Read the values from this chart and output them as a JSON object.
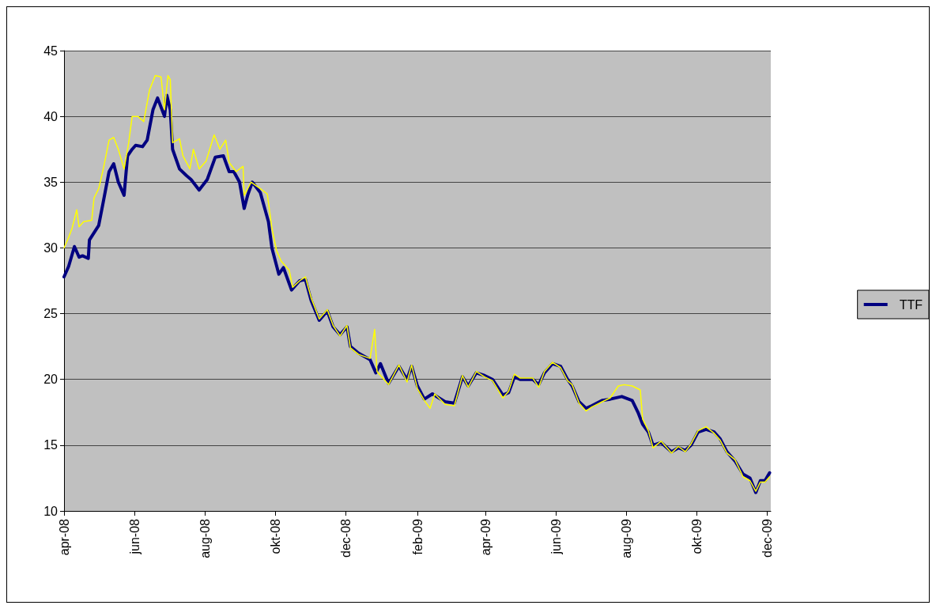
{
  "chart_data": {
    "type": "line",
    "xlim": [
      "2008-04-01",
      "2009-12-04"
    ],
    "ylim": [
      10,
      45
    ],
    "yticks": [
      10,
      15,
      20,
      25,
      30,
      35,
      40,
      45
    ],
    "xticks": [
      {
        "value": "2008-04-01",
        "label": "apr-08"
      },
      {
        "value": "2008-06-01",
        "label": "jun-08"
      },
      {
        "value": "2008-08-01",
        "label": "aug-08"
      },
      {
        "value": "2008-10-01",
        "label": "okt-08"
      },
      {
        "value": "2008-12-01",
        "label": "dec-08"
      },
      {
        "value": "2009-02-01",
        "label": "feb-09"
      },
      {
        "value": "2009-04-01",
        "label": "apr-09"
      },
      {
        "value": "2009-06-01",
        "label": "jun-09"
      },
      {
        "value": "2009-08-01",
        "label": "aug-09"
      },
      {
        "value": "2009-10-01",
        "label": "okt-09"
      },
      {
        "value": "2009-12-01",
        "label": "dec-09"
      }
    ],
    "grid": "y",
    "legend": "right",
    "marker": "none",
    "line_style": "solid",
    "series": [
      {
        "name": "TTF",
        "color": "#000080",
        "x": [
          "2008-04-01",
          "2008-04-05",
          "2008-04-10",
          "2008-04-14",
          "2008-04-17",
          "2008-04-22",
          "2008-04-23",
          "2008-05-01",
          "2008-05-05",
          "2008-05-10",
          "2008-05-14",
          "2008-05-18",
          "2008-05-23",
          "2008-05-26",
          "2008-05-30",
          "2008-06-02",
          "2008-06-08",
          "2008-06-12",
          "2008-06-17",
          "2008-06-21",
          "2008-06-27",
          "2008-06-29",
          "2008-07-02",
          "2008-07-04",
          "2008-07-10",
          "2008-07-16",
          "2008-07-20",
          "2008-07-27",
          "2008-08-03",
          "2008-08-10",
          "2008-08-17",
          "2008-08-22",
          "2008-08-26",
          "2008-08-31",
          "2008-09-04",
          "2008-09-07",
          "2008-09-11",
          "2008-09-18",
          "2008-09-25",
          "2008-09-28",
          "2008-10-04",
          "2008-10-08",
          "2008-10-15",
          "2008-10-22",
          "2008-10-27",
          "2008-11-01",
          "2008-11-08",
          "2008-11-15",
          "2008-11-20",
          "2008-11-26",
          "2008-12-02",
          "2008-12-05",
          "2008-12-12",
          "2008-12-22",
          "2008-12-27",
          "2008-12-31",
          "2009-01-07",
          "2009-01-16",
          "2009-01-23",
          "2009-01-27",
          "2009-02-01",
          "2009-02-07",
          "2009-02-14",
          "2009-02-25",
          "2009-03-05",
          "2009-03-12",
          "2009-03-17",
          "2009-03-24",
          "2009-03-31",
          "2009-04-07",
          "2009-04-16",
          "2009-04-21",
          "2009-04-26",
          "2009-05-01",
          "2009-05-12",
          "2009-05-17",
          "2009-05-22",
          "2009-05-29",
          "2009-06-05",
          "2009-06-11",
          "2009-06-15",
          "2009-06-21",
          "2009-06-27",
          "2009-07-02",
          "2009-07-11",
          "2009-07-18",
          "2009-07-28",
          "2009-08-06",
          "2009-08-11",
          "2009-08-15",
          "2009-08-20",
          "2009-08-24",
          "2009-08-31",
          "2009-09-09",
          "2009-09-15",
          "2009-09-21",
          "2009-09-26",
          "2009-10-02",
          "2009-10-09",
          "2009-10-16",
          "2009-10-21",
          "2009-10-27",
          "2009-11-03",
          "2009-11-10",
          "2009-11-16",
          "2009-11-21",
          "2009-11-25",
          "2009-11-29",
          "2009-12-03"
        ],
        "values": [
          27.8,
          28.6,
          30.1,
          29.3,
          29.4,
          29.2,
          30.6,
          31.7,
          33.5,
          35.8,
          36.4,
          35.0,
          34.0,
          37.0,
          37.5,
          37.8,
          37.7,
          38.2,
          40.5,
          41.4,
          40.0,
          41.6,
          40.5,
          37.5,
          36.0,
          35.5,
          35.2,
          34.4,
          35.2,
          36.9,
          37.0,
          35.8,
          35.8,
          35.0,
          33.0,
          34.0,
          35.0,
          34.2,
          32.0,
          30.0,
          28.0,
          28.5,
          26.8,
          27.5,
          27.6,
          26.0,
          24.5,
          25.2,
          24.0,
          23.4,
          24.0,
          22.5,
          22.0,
          21.5,
          20.5,
          21.2,
          19.7,
          21.0,
          20.0,
          21.0,
          19.5,
          18.5,
          18.9,
          18.3,
          18.2,
          20.2,
          19.5,
          20.5,
          20.3,
          20.0,
          18.8,
          19.0,
          20.2,
          20.0,
          20.0,
          19.6,
          20.5,
          21.2,
          21.0,
          20.0,
          19.5,
          18.3,
          17.8,
          18.0,
          18.4,
          18.5,
          18.7,
          18.4,
          17.5,
          16.6,
          16.0,
          15.0,
          15.2,
          14.5,
          14.8,
          14.6,
          15.0,
          16.0,
          16.2,
          16.0,
          15.5,
          14.5,
          13.8,
          12.8,
          12.5,
          11.4,
          12.3,
          12.3,
          12.9
        ]
      },
      {
        "color": "#ffff00",
        "x": [
          "2008-04-01",
          "2008-04-05",
          "2008-04-08",
          "2008-04-12",
          "2008-04-14",
          "2008-04-18",
          "2008-04-25",
          "2008-04-27",
          "2008-05-01",
          "2008-05-05",
          "2008-05-10",
          "2008-05-14",
          "2008-05-18",
          "2008-05-23",
          "2008-05-27",
          "2008-05-30",
          "2008-06-04",
          "2008-06-09",
          "2008-06-14",
          "2008-06-19",
          "2008-06-24",
          "2008-06-27",
          "2008-06-30",
          "2008-07-02",
          "2008-07-04",
          "2008-07-10",
          "2008-07-13",
          "2008-07-19",
          "2008-07-22",
          "2008-07-27",
          "2008-08-02",
          "2008-08-09",
          "2008-08-14",
          "2008-08-19",
          "2008-08-22",
          "2008-08-28",
          "2008-09-03",
          "2008-09-04",
          "2008-09-10",
          "2008-09-18",
          "2008-09-24",
          "2008-09-28",
          "2008-10-02",
          "2008-10-06",
          "2008-10-13",
          "2008-10-16",
          "2008-10-22",
          "2008-10-27",
          "2008-11-01",
          "2008-11-08",
          "2008-11-15",
          "2008-11-20",
          "2008-11-26",
          "2008-12-02",
          "2008-12-05",
          "2008-12-12",
          "2008-12-22",
          "2008-12-26",
          "2008-12-28",
          "2009-01-07",
          "2009-01-16",
          "2009-01-23",
          "2009-01-27",
          "2009-02-01",
          "2009-02-07",
          "2009-02-12",
          "2009-02-16",
          "2009-02-25",
          "2009-03-05",
          "2009-03-12",
          "2009-03-17",
          "2009-03-24",
          "2009-03-31",
          "2009-04-07",
          "2009-04-16",
          "2009-04-21",
          "2009-04-26",
          "2009-05-01",
          "2009-05-12",
          "2009-05-17",
          "2009-05-22",
          "2009-05-29",
          "2009-06-05",
          "2009-06-11",
          "2009-06-15",
          "2009-06-21",
          "2009-06-27",
          "2009-07-02",
          "2009-07-11",
          "2009-07-18",
          "2009-07-25",
          "2009-07-30",
          "2009-08-06",
          "2009-08-13",
          "2009-08-15",
          "2009-08-20",
          "2009-08-24",
          "2009-08-31",
          "2009-09-09",
          "2009-09-15",
          "2009-09-21",
          "2009-09-26",
          "2009-10-02",
          "2009-10-09",
          "2009-10-16",
          "2009-10-21",
          "2009-10-27",
          "2009-11-03",
          "2009-11-10",
          "2009-11-16",
          "2009-11-21",
          "2009-11-25",
          "2009-11-29",
          "2009-12-03"
        ],
        "values": [
          30.0,
          30.8,
          31.5,
          32.9,
          31.6,
          32.0,
          32.1,
          33.8,
          34.5,
          36.0,
          38.2,
          38.4,
          37.5,
          36.0,
          38.0,
          40.0,
          40.0,
          39.6,
          42.0,
          43.1,
          43.0,
          40.5,
          43.1,
          42.8,
          38.0,
          38.3,
          37.0,
          36.0,
          37.5,
          36.0,
          36.6,
          38.6,
          37.5,
          38.2,
          36.5,
          35.8,
          36.2,
          34.0,
          35.0,
          34.5,
          34.1,
          31.5,
          29.8,
          29.0,
          28.3,
          27.0,
          27.5,
          27.8,
          26.2,
          24.6,
          25.3,
          24.1,
          23.3,
          24.1,
          22.4,
          21.9,
          21.6,
          23.8,
          20.6,
          19.6,
          21.1,
          19.8,
          21.1,
          19.3,
          18.4,
          17.8,
          18.9,
          18.1,
          18.0,
          20.3,
          19.4,
          20.6,
          20.2,
          19.9,
          18.6,
          19.1,
          20.4,
          20.1,
          20.1,
          19.4,
          20.6,
          21.3,
          20.9,
          19.9,
          19.6,
          18.2,
          17.6,
          17.9,
          18.3,
          18.6,
          19.5,
          19.6,
          19.5,
          19.2,
          17.0,
          16.1,
          14.8,
          15.3,
          14.4,
          14.9,
          14.5,
          15.1,
          16.1,
          16.4,
          15.9,
          15.4,
          14.4,
          13.9,
          12.6,
          12.3,
          11.5,
          12.2,
          12.2,
          12.6
        ]
      }
    ]
  }
}
